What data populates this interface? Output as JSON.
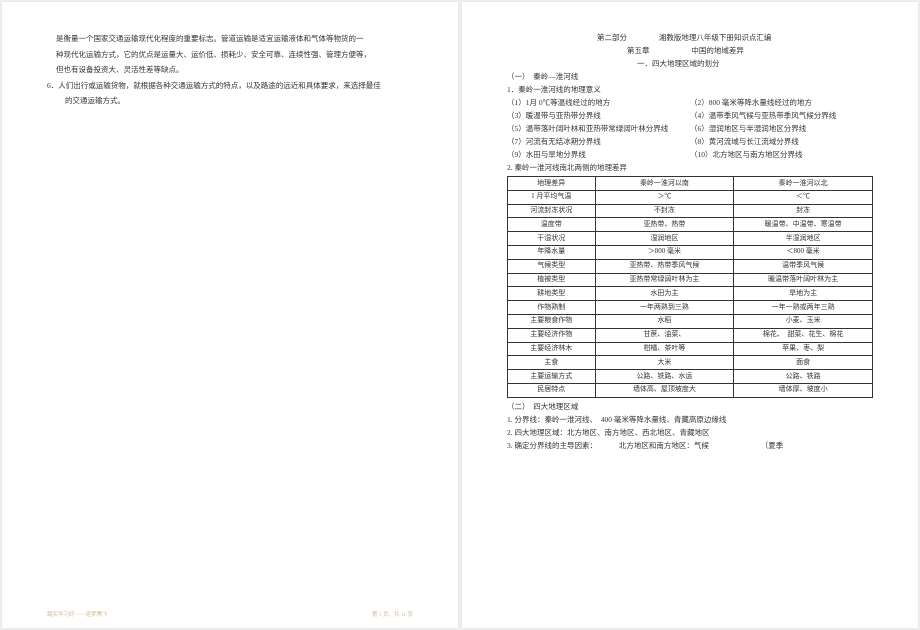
{
  "left": {
    "p1": "是衡量一个国家交通运输现代化程度的重要标志。管道运输是适宜运输液体和气体等物货的一",
    "p2": "种现代化运输方式，它的优点是运量大、运价低、损耗少、安全可靠、连续性强、管理方便等，",
    "p3": "但也有设备投资大、灵活性差等缺点。",
    "p4": "6．人们出行或运输货物，就根据各种交通运输方式的特点，以及路途的远近和具体要求，来选择最佳",
    "p5": "的交通运输方式。",
    "footer_left": "踏实学习好——逐梦腾飞",
    "footer_right": "第 5 页，共 11 页"
  },
  "right": {
    "header1_left": "第二部分",
    "header1_right": "湘教版地理八年级下册知识点汇编",
    "header2_left": "第五章",
    "header2_right": "中国的地域差异",
    "header3": "一．四大地理区域的划分",
    "s1_title": "（一）　秦岭—淮河线",
    "s1_1": "1．秦岭一淮河线的地理意义",
    "row1a": "（1）1月 0℃等温线经过的地方",
    "row1b": "（2）800 毫米等降水量线经过的地方",
    "row2a": "（3）暖温带与亚热带分界线",
    "row2b": "（4）温带季风气候与亚热带季风气候分界线",
    "row3a": "（5）温带落叶阔叶林和亚热带常绿阔叶林分界线",
    "row3b": "（6）湿润地区与半湿润地区分界线",
    "row4a": "（7）河流有无结冰期分界线",
    "row4b": "（8）黄河流域与长江流域分界线",
    "row5a": "（9）水田与旱地分界线",
    "row5b": "（10）北方地区与南方地区分界线",
    "s1_2": "2. 秦岭一淮河线南北两侧的地理差异",
    "table": {
      "headers": [
        "地理差异",
        "秦岭一淮河以南",
        "秦岭一淮河以北"
      ],
      "rows": [
        [
          "1 月平均气温",
          "＞℃",
          "＜℃"
        ],
        [
          "河流封冻状况",
          "不封冻",
          "封冻"
        ],
        [
          "温度带",
          "亚热带、热带",
          "暖温带、中温带、寒温带"
        ],
        [
          "干湿状况",
          "湿润地区",
          "半湿润地区"
        ],
        [
          "年降水量",
          "＞800 毫米",
          "＜800 毫米"
        ],
        [
          "气候类型",
          "亚热带、热带季风气候",
          "温带季风气候"
        ],
        [
          "植被类型",
          "亚热带常绿阔叶林为主",
          "暖温带落叶阔叶林为主"
        ],
        [
          "耕地类型",
          "水田为主",
          "旱地为主"
        ],
        [
          "作物熟制",
          "一年两熟到三熟",
          "一年一熟或两年三熟"
        ],
        [
          "主要粮食作物",
          "水稻",
          "小麦、玉米"
        ],
        [
          "主要经济作物",
          "甘蔗、油菜、",
          "棉花、　甜菜、花生、棉花"
        ],
        [
          "主要经济林木",
          "柑橘、茶叶等",
          "苹果、枣、梨"
        ],
        [
          "主食",
          "大米",
          "面食"
        ],
        [
          "主要运输方式",
          "公路、铁路、水运",
          "公路、铁路"
        ],
        [
          "民居特点",
          "墙体高、屋顶坡度大",
          "墙体厚、坡度小"
        ]
      ]
    },
    "s2_title": "（二）　四大地理区域",
    "s2_1": "1. 分界线：秦岭一淮河线、　400 毫米等降水量线、青藏高原边缘线",
    "s2_2": "2. 四大地理区域：北方地区、南方地区、西北地区、青藏地区",
    "s2_3a": "3. 确定分界线的主导因素：",
    "s2_3b": "北方地区和南方地区：气候",
    "s2_3c": "（夏季"
  }
}
